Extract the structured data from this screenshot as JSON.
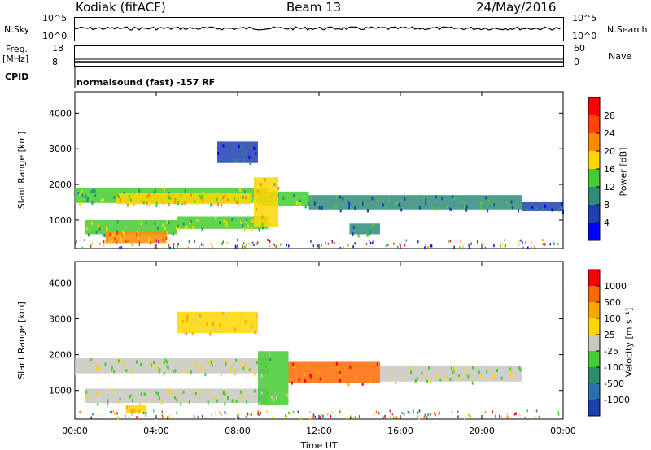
{
  "header": {
    "title": "Kodiak (fitACF)",
    "beam": "Beam 13",
    "date": "24/May/2016"
  },
  "top_panels": {
    "nsky_label": "N.Sky",
    "nsky_ticks": [
      "10^5",
      "10^0"
    ],
    "nsearch_label": "N.Search",
    "nsearch_ticks": [
      "10^5",
      "10^0"
    ],
    "freq_label": "Freq.",
    "freq_unit": "[MHz]",
    "freq_ticks": [
      "18",
      "8"
    ],
    "nave_label": "Nave",
    "nave_ticks": [
      "60",
      "0"
    ],
    "cpid_label": "CPID",
    "cpid_text": "normalsound (fast) -157 RF"
  },
  "chart_data": [
    {
      "type": "heatmap",
      "title": "",
      "xlabel": "Time UT",
      "ylabel": "Slant Range [km]",
      "x_ticks": [
        "00:00",
        "04:00",
        "08:00",
        "12:00",
        "16:00",
        "20:00",
        "00:00"
      ],
      "y_ticks": [
        1000,
        2000,
        3000,
        4000
      ],
      "ylim": [
        200,
        4600
      ],
      "colorbar": {
        "label": "Power [dB]",
        "ticks": [
          "4",
          "8",
          "12",
          "16",
          "20",
          "24",
          "28"
        ],
        "colors": [
          "#0000ff",
          "#1f40b0",
          "#2f8c7a",
          "#44cc33",
          "#ffd700",
          "#ff8c00",
          "#ff4500",
          "#ff0000"
        ]
      },
      "bands": [
        {
          "t0": 0,
          "t1": 9.5,
          "r0": 1480,
          "r1": 1900,
          "c": 3
        },
        {
          "t0": 2,
          "t1": 8.7,
          "r0": 1450,
          "r1": 1750,
          "c": 4
        },
        {
          "t0": 9,
          "t1": 11.5,
          "r0": 1400,
          "r1": 1800,
          "c": 3
        },
        {
          "t0": 11.5,
          "t1": 22,
          "r0": 1300,
          "r1": 1700,
          "c": 2
        },
        {
          "t0": 22,
          "t1": 24,
          "r0": 1250,
          "r1": 1500,
          "c": 1
        },
        {
          "t0": 0.5,
          "t1": 5,
          "r0": 600,
          "r1": 1000,
          "c": 3
        },
        {
          "t0": 5,
          "t1": 9.5,
          "r0": 750,
          "r1": 1100,
          "c": 3
        },
        {
          "t0": 1.5,
          "t1": 4.5,
          "r0": 350,
          "r1": 700,
          "c": 5
        },
        {
          "t0": 7,
          "t1": 9,
          "r0": 2600,
          "r1": 3200,
          "c": 1
        },
        {
          "t0": 13.5,
          "t1": 15,
          "r0": 600,
          "r1": 900,
          "c": 2
        },
        {
          "t0": 8.8,
          "t1": 10,
          "r0": 800,
          "r1": 2200,
          "c": 4
        }
      ]
    },
    {
      "type": "heatmap",
      "title": "",
      "xlabel": "Time UT",
      "ylabel": "Slant Range [km]",
      "x_ticks": [
        "00:00",
        "04:00",
        "08:00",
        "12:00",
        "16:00",
        "20:00",
        "00:00"
      ],
      "y_ticks": [
        1000,
        2000,
        3000,
        4000
      ],
      "ylim": [
        200,
        4600
      ],
      "colorbar": {
        "label": "Velocity [m s⁻¹]",
        "ticks": [
          "1000",
          "500",
          "100",
          "25",
          "-25",
          "-100",
          "-500",
          "-1000"
        ],
        "colors": [
          "#1e3fb0",
          "#2a6fb0",
          "#2f8c6a",
          "#44cc33",
          "#c8c8c0",
          "#ffd700",
          "#ffa500",
          "#ff6a00",
          "#ff0000"
        ]
      },
      "bands": [
        {
          "t0": 0,
          "t1": 9.5,
          "r0": 1480,
          "r1": 1900,
          "c": 4
        },
        {
          "t0": 0.5,
          "t1": 9.5,
          "r0": 650,
          "r1": 1050,
          "c": 4
        },
        {
          "t0": 9,
          "t1": 10.5,
          "r0": 600,
          "r1": 2100,
          "c": 3
        },
        {
          "t0": 10.5,
          "t1": 15,
          "r0": 1200,
          "r1": 1800,
          "c": 7
        },
        {
          "t0": 15,
          "t1": 22,
          "r0": 1250,
          "r1": 1700,
          "c": 4
        },
        {
          "t0": 2.5,
          "t1": 3.5,
          "r0": 350,
          "r1": 600,
          "c": 5
        },
        {
          "t0": 5,
          "t1": 9,
          "r0": 2600,
          "r1": 3200,
          "c": 5
        }
      ]
    }
  ]
}
